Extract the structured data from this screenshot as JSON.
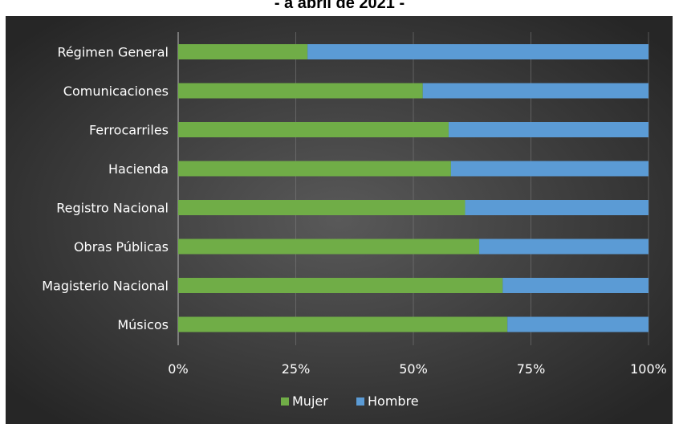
{
  "chart_data": {
    "type": "bar",
    "orientation": "horizontal",
    "stacked": "percent",
    "title": "- a abril de 2021 -",
    "categories": [
      "Régimen General",
      "Comunicaciones",
      "Ferrocarriles",
      "Hacienda",
      "Registro Nacional",
      "Obras Públicas",
      "Magisterio Nacional",
      "Músicos"
    ],
    "series": [
      {
        "name": "Mujer",
        "color": "#70ad47",
        "values": [
          27.5,
          52,
          57.5,
          58,
          61,
          64,
          69,
          70
        ]
      },
      {
        "name": "Hombre",
        "color": "#5b9bd5",
        "values": [
          72.5,
          48,
          42.5,
          42,
          39,
          36,
          31,
          30
        ]
      }
    ],
    "xticks": [
      "0%",
      "25%",
      "50%",
      "75%",
      "100%"
    ],
    "xlim": [
      0,
      100
    ],
    "grid": true,
    "legend": "bottom"
  },
  "colors": {
    "background_center": "#595959",
    "background_edge": "#262626",
    "gridline": "#7f7f7f",
    "text": "#ffffff"
  }
}
